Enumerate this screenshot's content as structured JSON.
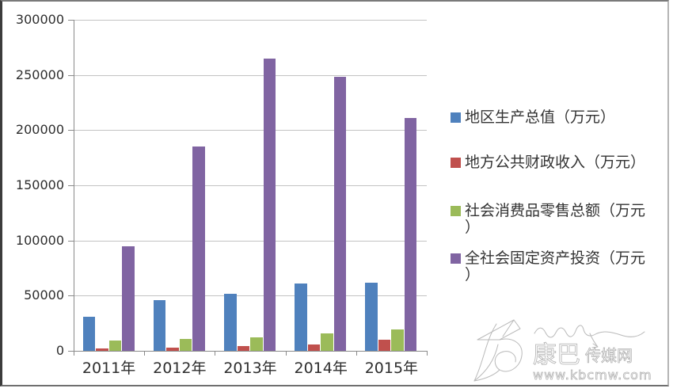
{
  "chart_data": {
    "type": "bar",
    "categories": [
      "2011年",
      "2012年",
      "2013年",
      "2014年",
      "2015年"
    ],
    "series": [
      {
        "key": "gdp",
        "name": "地区生产总值（万元）",
        "legend_lines": [
          "地区生产总值（万元）"
        ],
        "color": "#4f81bd",
        "values": [
          31000,
          46000,
          52000,
          61000,
          62000
        ]
      },
      {
        "key": "fiscal-revenue",
        "name": "地方公共财政收入（万元）",
        "legend_lines": [
          "地方公共财政收入（万元）"
        ],
        "color": "#c0504d",
        "values": [
          2000,
          3000,
          4000,
          6000,
          10000
        ]
      },
      {
        "key": "retail-sales",
        "name": "社会消费品零售总额（万元）",
        "legend_lines": [
          "社会消费品零售总额（万元",
          "）"
        ],
        "color": "#9bbb59",
        "values": [
          9000,
          10500,
          12000,
          15500,
          19500
        ]
      },
      {
        "key": "fixed-investment",
        "name": "全社会固定资产投资（万元）",
        "legend_lines": [
          "全社会固定资产投资（万元",
          "）"
        ],
        "color": "#8064a2",
        "values": [
          95000,
          185000,
          265000,
          248000,
          211000
        ]
      }
    ],
    "title": "",
    "xlabel": "",
    "ylabel": "",
    "ylim": [
      0,
      300000
    ],
    "ytick_step": 50000,
    "ytick_labels": [
      "300000",
      "250000",
      "200000",
      "150000",
      "100000",
      "50000",
      "0"
    ],
    "grid": true,
    "legend_position": "right"
  },
  "colors": {
    "gridline": "#c3c3c3",
    "axis": "#8a8a8a",
    "tick_text": "#2e2e2e"
  },
  "watermark": {
    "site_name_large": "康巴",
    "site_name_small": "传媒网",
    "url": "www.kbcmw.com"
  }
}
